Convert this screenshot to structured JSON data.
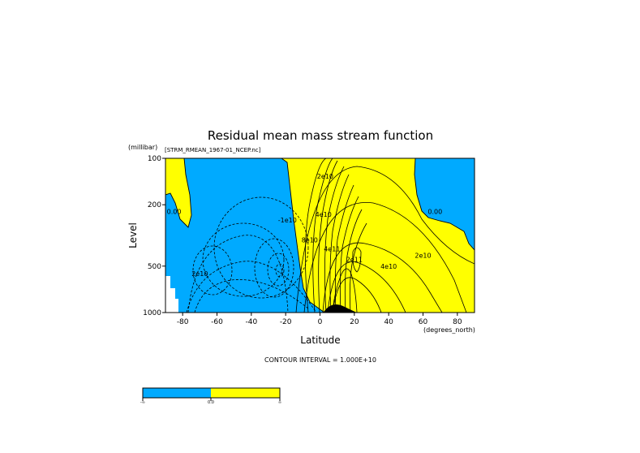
{
  "colors": {
    "negative": "#00aaff",
    "positive": "#ffff00",
    "background": "#ffffff",
    "line": "#000000"
  },
  "chart_data": {
    "type": "heatmap",
    "title": "Residual mean mass stream function",
    "subtitle": "[STRM_RMEAN_1967-01_NCEP.nc]",
    "xlabel": "Latitude",
    "x_unit": "(degrees_north)",
    "ylabel": "Level",
    "y_unit": "(millibar)",
    "xlim": [
      -90,
      90
    ],
    "ylim": [
      100,
      1000
    ],
    "y_scale": "log",
    "x_ticks": [
      {
        "value": -80,
        "label": "-80"
      },
      {
        "value": -60,
        "label": "-60"
      },
      {
        "value": -40,
        "label": "-40"
      },
      {
        "value": -20,
        "label": "-20"
      },
      {
        "value": 0,
        "label": "0"
      },
      {
        "value": 20,
        "label": "20"
      },
      {
        "value": 40,
        "label": "40"
      },
      {
        "value": 60,
        "label": "60"
      },
      {
        "value": 80,
        "label": "80"
      }
    ],
    "y_ticks": [
      {
        "value": 100,
        "label": "100"
      },
      {
        "value": 200,
        "label": "200"
      },
      {
        "value": 500,
        "label": "500"
      },
      {
        "value": 1000,
        "label": "1000"
      }
    ],
    "contour_interval_label": "CONTOUR INTERVAL = 1.000E+10",
    "contour_labels": [
      {
        "text": "0.00",
        "lat": -85,
        "lev": 230
      },
      {
        "text": "2e10",
        "lat": -70,
        "lev": 580
      },
      {
        "text": "-1e10",
        "lat": -19,
        "lev": 260
      },
      {
        "text": "2e10",
        "lat": 3,
        "lev": 135
      },
      {
        "text": "4e10",
        "lat": 2,
        "lev": 240
      },
      {
        "text": "8e10",
        "lat": -6,
        "lev": 350
      },
      {
        "text": "4e11",
        "lat": 7,
        "lev": 400
      },
      {
        "text": "2e11",
        "lat": 20,
        "lev": 470
      },
      {
        "text": "4e10",
        "lat": 40,
        "lev": 520
      },
      {
        "text": "2e10",
        "lat": 60,
        "lev": 440
      },
      {
        "text": "0.00",
        "lat": 67,
        "lev": 230
      }
    ],
    "colorbar": {
      "segments": [
        {
          "from": "-∞",
          "to": "0.0",
          "color": "#00aaff"
        },
        {
          "from": "0.0",
          "to": "∞",
          "color": "#ffff00"
        }
      ],
      "labels": [
        "-∞",
        "0.0",
        "∞"
      ]
    }
  }
}
